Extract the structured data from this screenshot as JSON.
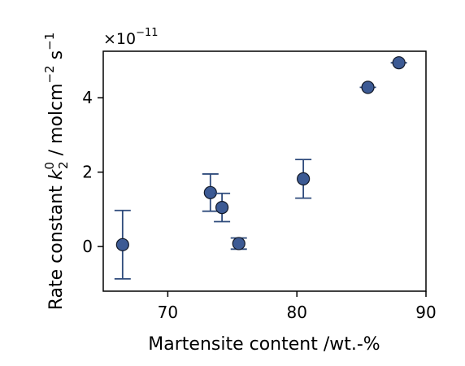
{
  "chart_data": {
    "type": "scatter",
    "xlabel": "Martensite content /wt.-%",
    "ylabel": {
      "prefix": "Rate constant ",
      "symbol": "k",
      "subscript": "2",
      "superscript": "0",
      "unit_prefix": " / mol",
      "unit_cm": "cm",
      "unit_cm_exp": "−2",
      "unit_s": " s",
      "unit_s_exp": "−1"
    },
    "offset_text": {
      "base": "×10",
      "exponent": "−11"
    },
    "xlim": [
      65,
      90
    ],
    "ylim": [
      -1.2,
      5.25
    ],
    "xticks": [
      70,
      80,
      90
    ],
    "yticks": [
      0,
      2,
      4
    ],
    "grid": false,
    "series": [
      {
        "color": "#3c5a94",
        "points": [
          {
            "x": 66.5,
            "y": 0.05,
            "err": 0.92
          },
          {
            "x": 73.3,
            "y": 1.45,
            "err": 0.5
          },
          {
            "x": 74.2,
            "y": 1.05,
            "err": 0.38
          },
          {
            "x": 75.5,
            "y": 0.08,
            "err": 0.15
          },
          {
            "x": 80.5,
            "y": 1.82,
            "err": 0.52
          },
          {
            "x": 85.5,
            "y": 4.28,
            "err": 0.0
          },
          {
            "x": 87.9,
            "y": 4.94,
            "err": 0.0
          }
        ]
      }
    ]
  }
}
